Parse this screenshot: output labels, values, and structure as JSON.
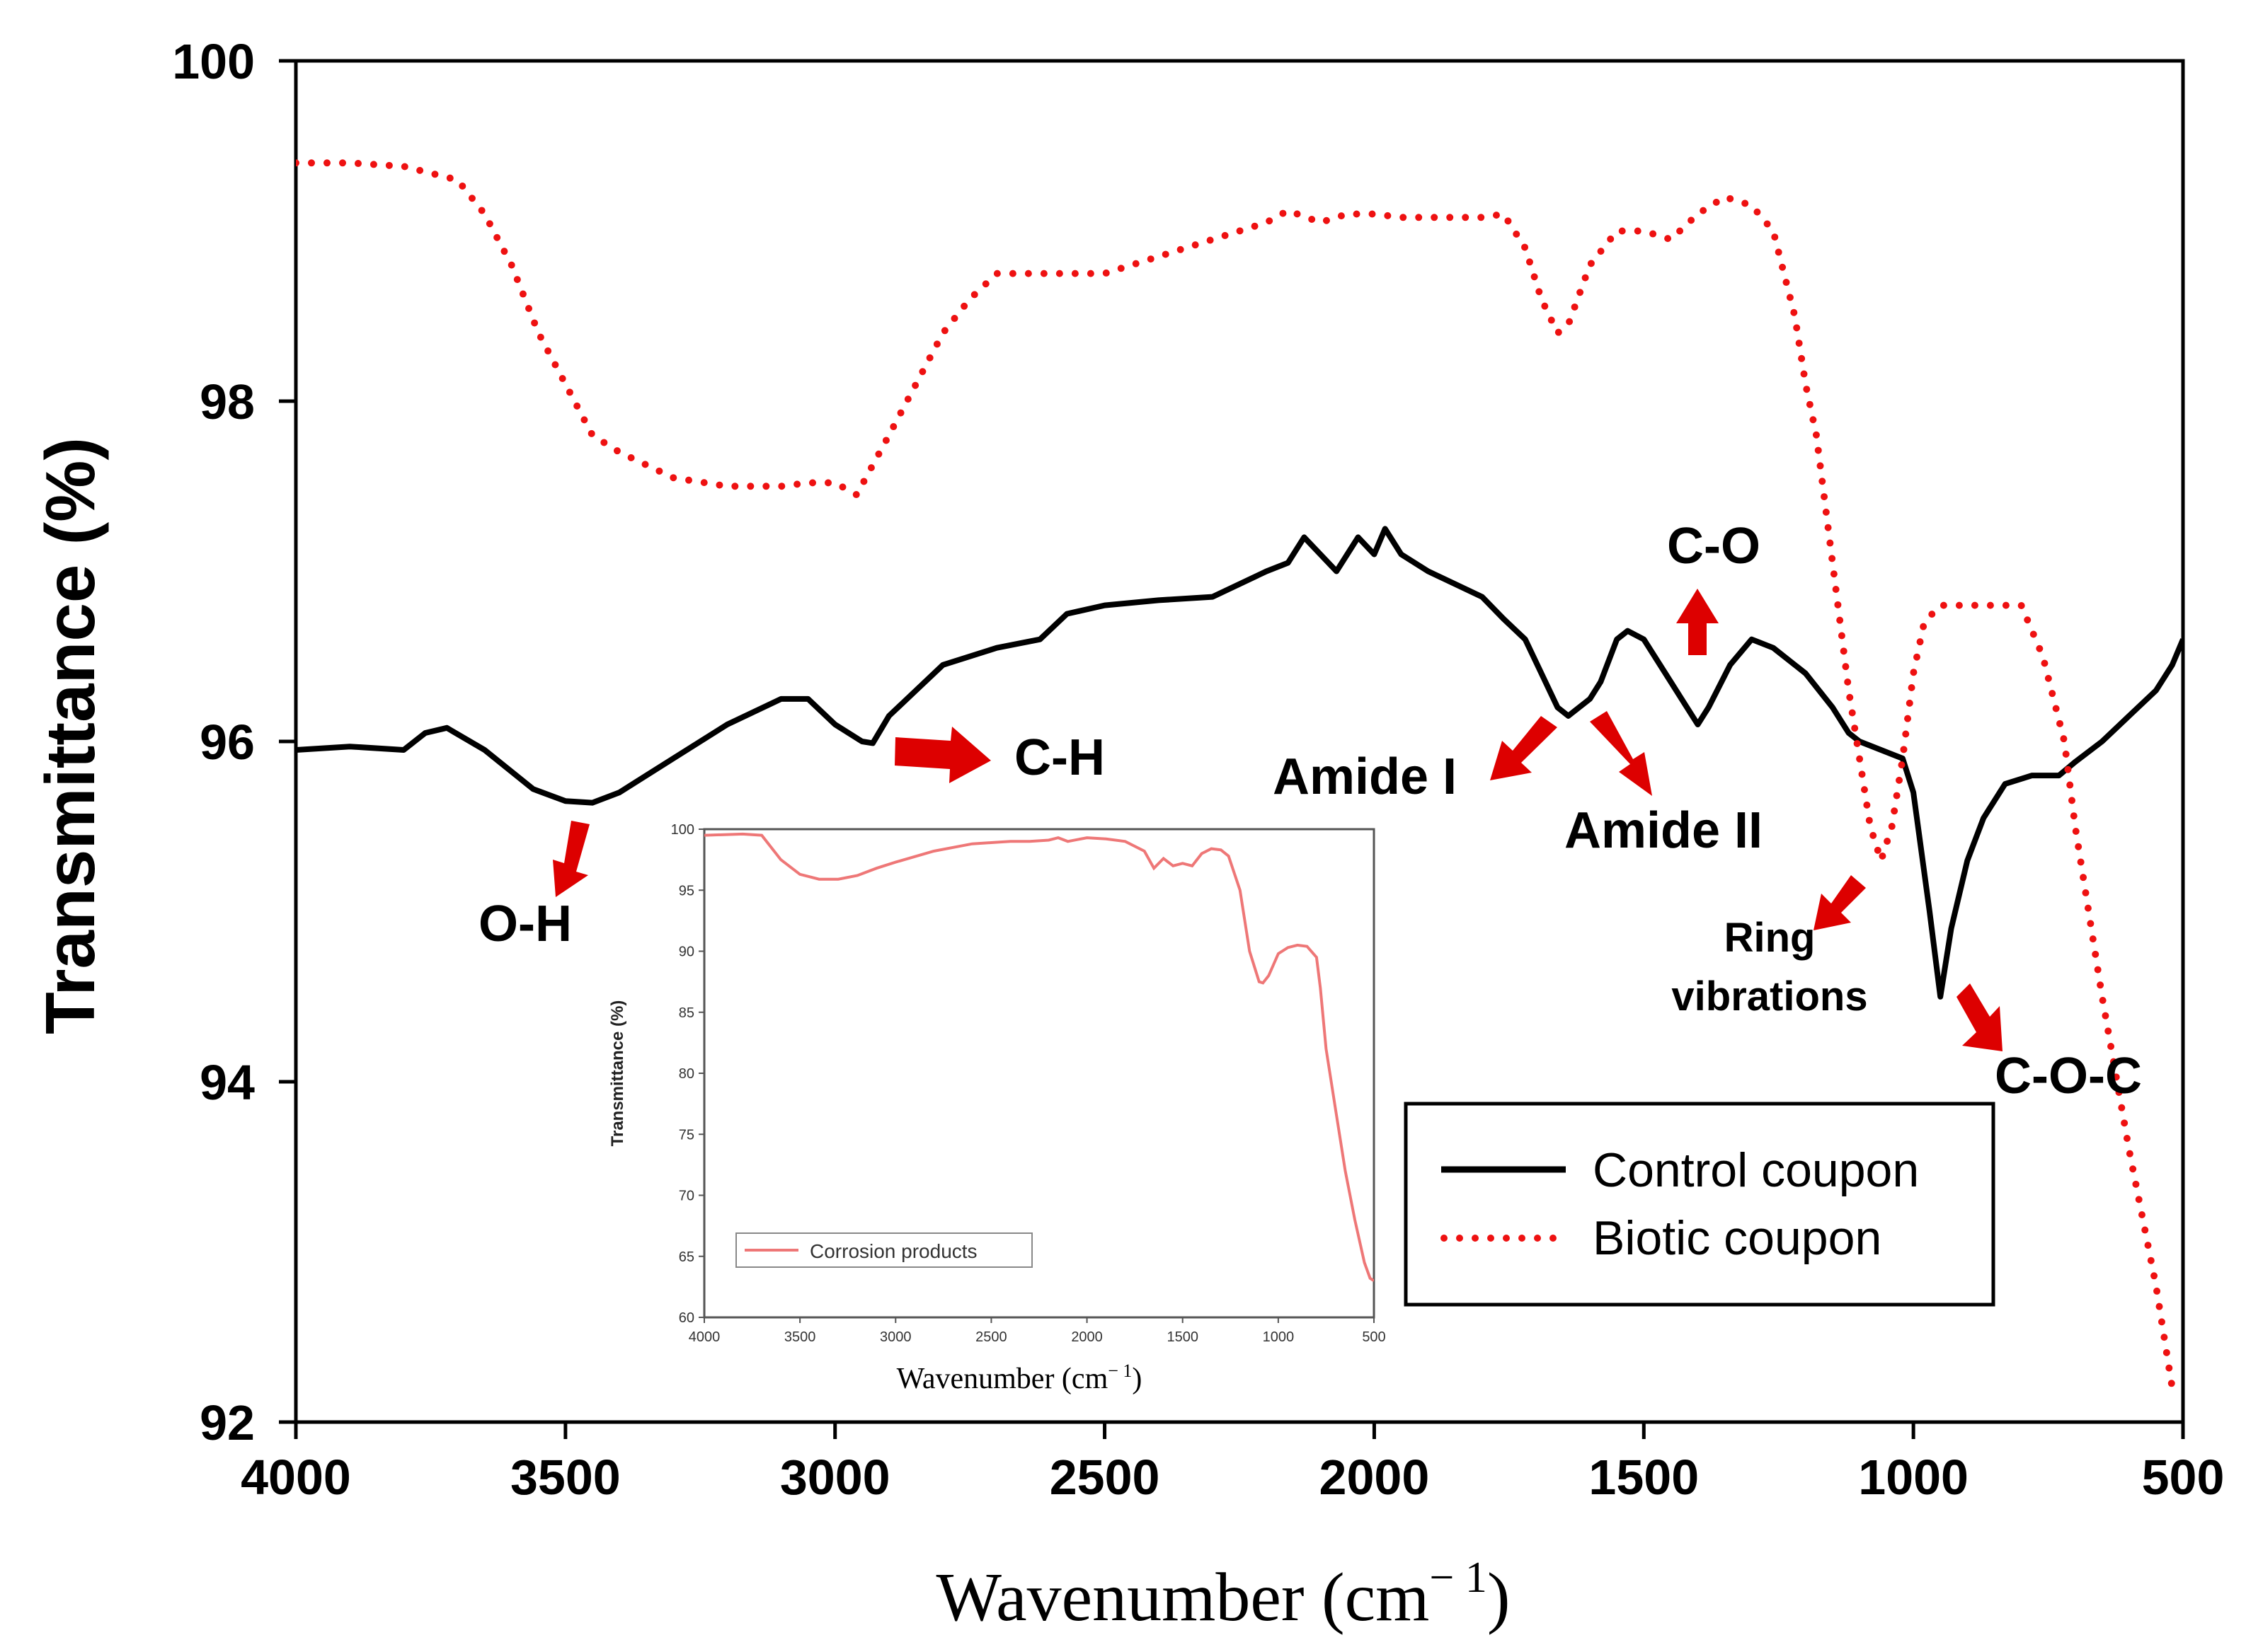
{
  "chart_data": {
    "type": "line",
    "xlabel_main": "Wavenumber (cm",
    "xlabel_sup": "− 1",
    "xlabel_close": ")",
    "ylabel": "Transmittance (%)",
    "xlim": [
      4000,
      500
    ],
    "ylim": [
      92,
      100
    ],
    "x_ticks": [
      4000,
      3500,
      3000,
      2500,
      2000,
      1500,
      1000,
      500
    ],
    "y_ticks": [
      92,
      94,
      96,
      98,
      100
    ],
    "legend_position": "lower-right",
    "colors": {
      "control": "#000000",
      "biotic": "#ee1111",
      "arrow": "#dd0000",
      "inset": "#ee7777"
    },
    "series": [
      {
        "name": "Control coupon",
        "style": "solid",
        "x": [
          4000,
          3900,
          3800,
          3760,
          3720,
          3650,
          3560,
          3500,
          3450,
          3400,
          3300,
          3200,
          3100,
          3050,
          3000,
          2950,
          2930,
          2900,
          2850,
          2800,
          2700,
          2620,
          2570,
          2500,
          2400,
          2300,
          2200,
          2160,
          2130,
          2070,
          2030,
          2000,
          1980,
          1950,
          1900,
          1800,
          1760,
          1720,
          1690,
          1660,
          1640,
          1600,
          1580,
          1550,
          1530,
          1500,
          1460,
          1420,
          1400,
          1380,
          1340,
          1300,
          1260,
          1200,
          1150,
          1120,
          1100,
          1060,
          1020,
          1000,
          970,
          950,
          930,
          900,
          870,
          830,
          780,
          730,
          700,
          650,
          600,
          550,
          520,
          500
        ],
        "values": [
          95.95,
          95.97,
          95.95,
          96.05,
          96.08,
          95.95,
          95.72,
          95.65,
          95.64,
          95.7,
          95.9,
          96.1,
          96.25,
          96.25,
          96.1,
          96.0,
          95.99,
          96.15,
          96.3,
          96.45,
          96.55,
          96.6,
          96.75,
          96.8,
          96.83,
          96.85,
          97.0,
          97.05,
          97.2,
          97.0,
          97.2,
          97.1,
          97.25,
          97.1,
          97.0,
          96.85,
          96.72,
          96.6,
          96.4,
          96.2,
          96.15,
          96.25,
          96.35,
          96.6,
          96.65,
          96.6,
          96.4,
          96.2,
          96.1,
          96.2,
          96.45,
          96.6,
          96.55,
          96.4,
          96.2,
          96.05,
          96.0,
          95.95,
          95.9,
          95.7,
          95.0,
          94.5,
          94.9,
          95.3,
          95.55,
          95.75,
          95.8,
          95.8,
          95.88,
          96.0,
          96.15,
          96.3,
          96.45,
          96.6
        ]
      },
      {
        "name": "Biotic coupon",
        "style": "dotted",
        "x": [
          4000,
          3900,
          3800,
          3700,
          3650,
          3600,
          3550,
          3500,
          3450,
          3400,
          3300,
          3200,
          3100,
          3050,
          3000,
          2960,
          2900,
          2850,
          2800,
          2750,
          2700,
          2600,
          2500,
          2400,
          2300,
          2200,
          2160,
          2100,
          2050,
          2000,
          1950,
          1900,
          1800,
          1760,
          1720,
          1690,
          1660,
          1640,
          1600,
          1550,
          1500,
          1450,
          1400,
          1350,
          1300,
          1260,
          1220,
          1200,
          1180,
          1160,
          1140,
          1120,
          1100,
          1080,
          1060,
          1040,
          1020,
          1000,
          980,
          950,
          900,
          850,
          800,
          760,
          720,
          700,
          650,
          600,
          550,
          520
        ],
        "values": [
          99.4,
          99.4,
          99.38,
          99.3,
          99.1,
          98.8,
          98.4,
          98.1,
          97.8,
          97.7,
          97.55,
          97.5,
          97.5,
          97.52,
          97.52,
          97.45,
          97.8,
          98.1,
          98.4,
          98.6,
          98.75,
          98.75,
          98.75,
          98.85,
          98.95,
          99.05,
          99.12,
          99.05,
          99.1,
          99.1,
          99.08,
          99.08,
          99.08,
          99.1,
          98.9,
          98.6,
          98.4,
          98.45,
          98.8,
          99.0,
          99.0,
          98.95,
          99.1,
          99.2,
          99.15,
          99.0,
          98.5,
          98.1,
          97.8,
          97.3,
          96.8,
          96.3,
          95.9,
          95.5,
          95.3,
          95.5,
          95.9,
          96.4,
          96.7,
          96.8,
          96.8,
          96.8,
          96.8,
          96.5,
          96.0,
          95.5,
          94.5,
          93.6,
          92.8,
          92.2
        ]
      }
    ],
    "annotations": [
      {
        "label": "O-H"
      },
      {
        "label": "C-H"
      },
      {
        "label": "Amide I"
      },
      {
        "label": "Amide II"
      },
      {
        "label": "C-O"
      },
      {
        "label": "Ring"
      },
      {
        "label": "vibrations"
      },
      {
        "label": "C-O-C"
      }
    ],
    "inset": {
      "type": "line",
      "xlabel_main": "Wavenumber (cm",
      "xlabel_sup": "− 1",
      "xlabel_close": ")",
      "ylabel": "Transmittance (%)",
      "xlim": [
        4000,
        500
      ],
      "ylim": [
        60,
        100
      ],
      "x_ticks": [
        4000,
        3500,
        3000,
        2500,
        2000,
        1500,
        1000,
        500
      ],
      "y_ticks": [
        60,
        65,
        70,
        75,
        80,
        85,
        90,
        95,
        100
      ],
      "legend_label": "Corrosion products",
      "x": [
        4000,
        3800,
        3700,
        3600,
        3500,
        3400,
        3300,
        3200,
        3100,
        3000,
        2800,
        2600,
        2500,
        2400,
        2300,
        2200,
        2150,
        2100,
        2000,
        1900,
        1800,
        1700,
        1650,
        1600,
        1550,
        1500,
        1450,
        1400,
        1350,
        1300,
        1260,
        1200,
        1150,
        1100,
        1080,
        1050,
        1000,
        950,
        900,
        850,
        800,
        780,
        750,
        700,
        650,
        600,
        550,
        520,
        500
      ],
      "values": [
        99.5,
        99.6,
        99.5,
        97.5,
        96.3,
        95.9,
        95.9,
        96.2,
        96.8,
        97.3,
        98.2,
        98.8,
        98.9,
        99.0,
        99.0,
        99.1,
        99.3,
        99.0,
        99.3,
        99.2,
        99.0,
        98.2,
        96.8,
        97.6,
        97.0,
        97.2,
        97.0,
        98.0,
        98.4,
        98.3,
        97.8,
        95.0,
        90.0,
        87.5,
        87.4,
        88.0,
        89.8,
        90.3,
        90.5,
        90.4,
        89.5,
        87.0,
        82.0,
        77.0,
        72.0,
        68.0,
        64.5,
        63.2,
        63.0
      ]
    }
  }
}
